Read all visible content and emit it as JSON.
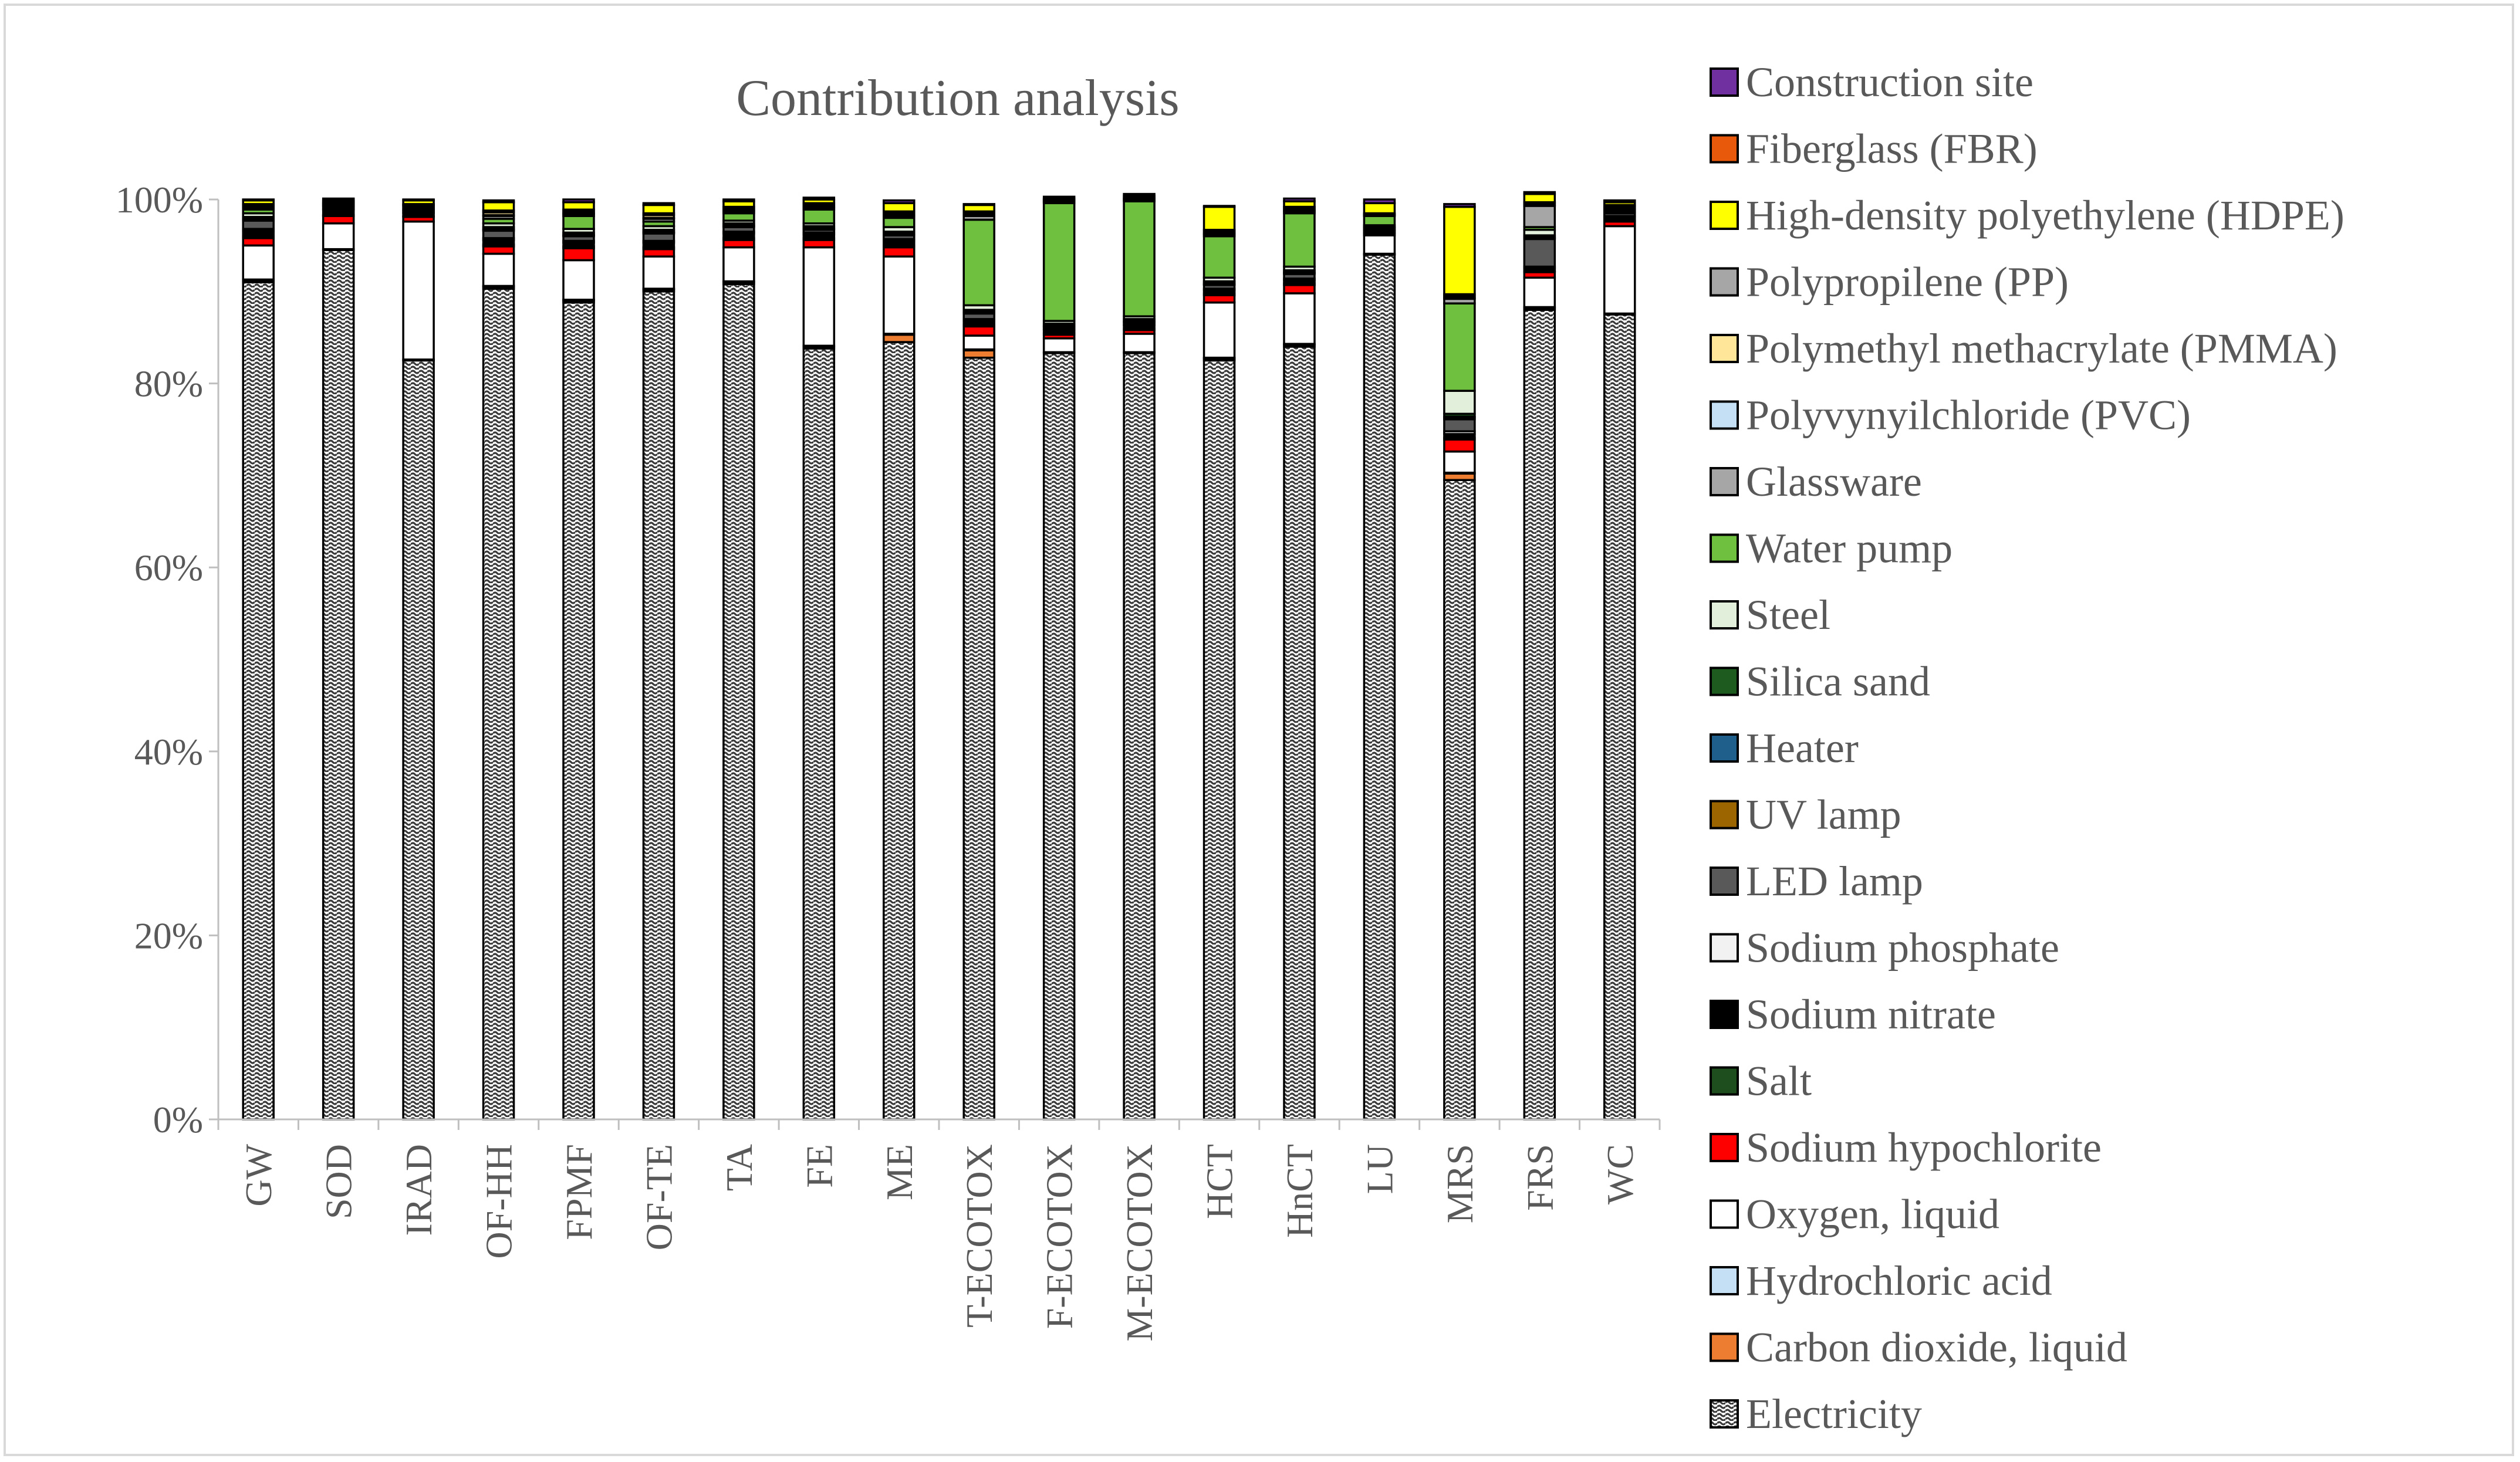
{
  "chart_data": {
    "type": "bar",
    "stacked": true,
    "title": "Contribution analysis",
    "xlabel": "",
    "ylabel": "",
    "ylim": [
      0,
      100
    ],
    "y_ticks": [
      "0%",
      "20%",
      "40%",
      "60%",
      "80%",
      "100%"
    ],
    "grid": false,
    "legend_position": "right",
    "categories": [
      "GW",
      "SOD",
      "IRAD",
      "OF-HH",
      "FPMF",
      "OF-TE",
      "TA",
      "FE",
      "ME",
      "T-ECOTOX",
      "F-ECOTOX",
      "M-ECOTOX",
      "HCT",
      "HnCT",
      "LU",
      "MRS",
      "FRS",
      "WC"
    ],
    "series": [
      {
        "name": "Electricity",
        "color": "#7f7f7f",
        "pattern": "wave",
        "values": [
          91.0,
          94.5,
          82.5,
          90.3,
          88.8,
          90.0,
          90.8,
          83.8,
          84.5,
          82.8,
          83.3,
          83.3,
          82.5,
          84.0,
          94.0,
          69.5,
          88.0,
          87.5
        ]
      },
      {
        "name": "Carbon dioxide, liquid",
        "color": "#ed7d31",
        "values": [
          0.2,
          0.0,
          0.0,
          0.2,
          0.2,
          0.2,
          0.2,
          0.2,
          0.8,
          0.8,
          0.0,
          0.0,
          0.2,
          0.2,
          0.0,
          0.7,
          0.2,
          0.0
        ]
      },
      {
        "name": "Hydrochloric acid",
        "color": "#c5e0f4",
        "values": [
          0.1,
          0.1,
          0.1,
          0.1,
          0.1,
          0.1,
          0.1,
          0.1,
          0.1,
          0.1,
          0.1,
          0.1,
          0.1,
          0.1,
          0.1,
          0.1,
          0.1,
          0.1
        ]
      },
      {
        "name": "Oxygen, liquid",
        "color": "#ffffff",
        "values": [
          3.7,
          2.8,
          15.0,
          3.5,
          4.3,
          3.5,
          3.7,
          10.7,
          8.4,
          1.5,
          1.5,
          2.0,
          6.0,
          5.5,
          2.0,
          2.3,
          3.2,
          9.5
        ]
      },
      {
        "name": "Sodium hypochlorite",
        "color": "#ff0000",
        "values": [
          0.8,
          0.8,
          0.5,
          0.8,
          1.3,
          0.8,
          0.8,
          0.8,
          1.0,
          1.0,
          0.4,
          0.4,
          0.8,
          0.9,
          0.2,
          1.3,
          0.6,
          0.5
        ]
      },
      {
        "name": "Salt",
        "color": "#1e4d1e",
        "values": [
          0.2,
          0.1,
          0.1,
          0.2,
          0.2,
          0.2,
          0.2,
          0.2,
          0.2,
          0.2,
          0.2,
          0.2,
          0.2,
          0.2,
          0.1,
          0.2,
          0.1,
          0.1
        ]
      },
      {
        "name": "Sodium nitrate",
        "color": "#000000",
        "values": [
          0.6,
          0.6,
          0.3,
          0.5,
          0.4,
          0.5,
          0.5,
          0.4,
          0.5,
          0.4,
          0.3,
          0.3,
          0.3,
          0.3,
          0.2,
          0.4,
          0.3,
          0.4
        ]
      },
      {
        "name": "Sodium phosphate",
        "color": "#f2f2f2",
        "values": [
          0.2,
          0.1,
          0.1,
          0.2,
          0.2,
          0.2,
          0.2,
          0.2,
          0.2,
          0.2,
          0.1,
          0.1,
          0.2,
          0.2,
          0.1,
          0.3,
          0.2,
          0.1
        ]
      },
      {
        "name": "LED lamp",
        "color": "#595959",
        "values": [
          0.9,
          0.2,
          0.2,
          0.8,
          0.5,
          0.8,
          0.5,
          0.3,
          0.4,
          0.6,
          0.2,
          0.2,
          0.4,
          0.5,
          0.2,
          1.3,
          3.0,
          0.3
        ]
      },
      {
        "name": "UV lamp",
        "color": "#9c6500",
        "values": [
          0.1,
          0.0,
          0.0,
          0.1,
          0.1,
          0.1,
          0.1,
          0.1,
          0.1,
          0.1,
          0.1,
          0.1,
          0.1,
          0.1,
          0.0,
          0.2,
          0.1,
          0.0
        ]
      },
      {
        "name": "Heater",
        "color": "#1f5f8b",
        "values": [
          0.1,
          0.0,
          0.0,
          0.1,
          0.1,
          0.1,
          0.1,
          0.1,
          0.1,
          0.1,
          0.1,
          0.1,
          0.1,
          0.1,
          0.0,
          0.1,
          0.1,
          0.0
        ]
      },
      {
        "name": "Silica sand",
        "color": "#1e5b1e",
        "values": [
          0.2,
          0.1,
          0.1,
          0.2,
          0.2,
          0.2,
          0.2,
          0.2,
          0.2,
          0.2,
          0.2,
          0.2,
          0.2,
          0.2,
          0.1,
          0.3,
          0.2,
          0.1
        ]
      },
      {
        "name": "Steel",
        "color": "#e2efda",
        "values": [
          0.4,
          0.1,
          0.2,
          0.4,
          0.4,
          0.4,
          0.3,
          0.3,
          0.5,
          0.5,
          0.3,
          0.3,
          0.4,
          0.4,
          0.2,
          2.5,
          0.6,
          0.2
        ]
      },
      {
        "name": "Water pump",
        "color": "#70c040",
        "values": [
          0.4,
          0.1,
          0.2,
          0.5,
          1.4,
          0.5,
          0.8,
          1.5,
          1.0,
          9.3,
          12.8,
          12.5,
          4.5,
          5.8,
          1.0,
          9.5,
          0.3,
          0.2
        ]
      },
      {
        "name": "Glassware",
        "color": "#a6a6a6",
        "values": [
          0.2,
          0.1,
          0.1,
          0.3,
          0.2,
          0.3,
          0.2,
          0.2,
          0.2,
          0.4,
          0.1,
          0.1,
          0.2,
          0.2,
          0.1,
          0.5,
          2.3,
          0.2
        ]
      },
      {
        "name": "Polyvynyilchloride (PVC)",
        "color": "#c5e0f4",
        "values": [
          0.1,
          0.0,
          0.0,
          0.1,
          0.1,
          0.1,
          0.1,
          0.1,
          0.1,
          0.1,
          0.1,
          0.1,
          0.1,
          0.1,
          0.0,
          0.1,
          0.1,
          0.0
        ]
      },
      {
        "name": "Polymethyl methacrylate (PMMA)",
        "color": "#ffe699",
        "values": [
          0.2,
          0.1,
          0.1,
          0.3,
          0.2,
          0.3,
          0.2,
          0.2,
          0.2,
          0.2,
          0.1,
          0.1,
          0.2,
          0.2,
          0.1,
          0.2,
          0.2,
          0.1
        ]
      },
      {
        "name": "Polypropilene (PP)",
        "color": "#a6a6a6",
        "values": [
          0.1,
          0.0,
          0.0,
          0.2,
          0.2,
          0.2,
          0.2,
          0.2,
          0.2,
          0.2,
          0.1,
          0.1,
          0.2,
          0.2,
          0.1,
          0.2,
          0.1,
          0.1
        ]
      },
      {
        "name": "High-density polyethylene (HDPE)",
        "color": "#ffff00",
        "values": [
          0.4,
          0.2,
          0.4,
          0.9,
          0.8,
          0.9,
          0.6,
          0.4,
          0.9,
          0.7,
          0.1,
          0.2,
          2.5,
          0.6,
          1.1,
          9.5,
          0.9,
          0.3
        ]
      },
      {
        "name": "Fiberglass (FBR)",
        "color": "#e8590c",
        "values": [
          0.0,
          0.0,
          0.0,
          0.0,
          0.0,
          0.0,
          0.0,
          0.0,
          0.0,
          0.0,
          0.0,
          0.0,
          0.0,
          0.0,
          0.0,
          0.0,
          0.0,
          0.0
        ]
      },
      {
        "name": "Construction site",
        "color": "#7030a0",
        "values": [
          0.1,
          0.2,
          0.1,
          0.2,
          0.3,
          0.2,
          0.2,
          0.2,
          0.3,
          0.1,
          0.2,
          0.2,
          0.1,
          0.3,
          0.4,
          0.3,
          0.2,
          0.2
        ]
      }
    ],
    "legend_order": [
      "Construction site",
      "Fiberglass (FBR)",
      "High-density polyethylene (HDPE)",
      "Polypropilene (PP)",
      "Polymethyl methacrylate (PMMA)",
      "Polyvynyilchloride (PVC)",
      "Glassware",
      "Water pump",
      "Steel",
      "Silica sand",
      "Heater",
      "UV lamp",
      "LED lamp",
      "Sodium phosphate",
      "Sodium nitrate",
      "Salt",
      "Sodium hypochlorite",
      "Oxygen, liquid",
      "Hydrochloric acid",
      "Carbon dioxide, liquid",
      "Electricity"
    ]
  }
}
